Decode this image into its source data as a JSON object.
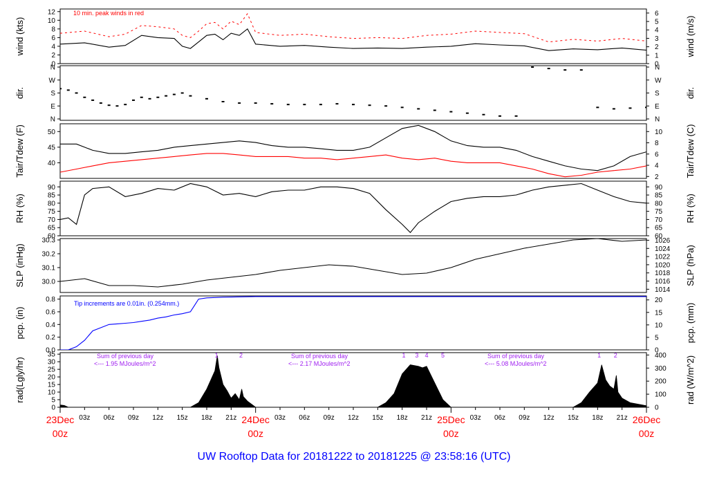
{
  "title": "UW Rooftop Data for 20181222  to  20181225 @ 23:58:16  (UTC)",
  "colors": {
    "black": "#000000",
    "red": "#ff0000",
    "blue": "#0000ff",
    "purple": "#a020f0",
    "title": "#0000ff"
  },
  "time_axis": {
    "minor_labels": [
      "03z",
      "06z",
      "09z",
      "12z",
      "15z",
      "18z",
      "21z"
    ],
    "days": [
      {
        "date": "23Dec",
        "hour": "00z"
      },
      {
        "date": "24Dec",
        "hour": "00z"
      },
      {
        "date": "25Dec",
        "hour": "00z"
      },
      {
        "date": "26Dec",
        "hour": "00z"
      }
    ]
  },
  "chart_data": [
    {
      "id": "wind",
      "type": "line",
      "ylabel_left": "wind (kts)",
      "ylabel_right": "wind (m/s)",
      "ylim": [
        0,
        12.6
      ],
      "left_ticks": [
        "0",
        "2",
        "4",
        "6",
        "8",
        "10",
        "12"
      ],
      "right_ticks": [
        "0",
        "1",
        "2",
        "3",
        "4",
        "5",
        "6"
      ],
      "annotation": "10 min. peak winds in red",
      "series": [
        {
          "color": "#000000",
          "hours": [
            0,
            3,
            6,
            8,
            10,
            12,
            14,
            15,
            16,
            17,
            18,
            19,
            20,
            21,
            22,
            23,
            24,
            27,
            30,
            33,
            36,
            39,
            42,
            45,
            48,
            51,
            54,
            57,
            60,
            63,
            66,
            69,
            72
          ],
          "values": [
            4.5,
            4.8,
            3.8,
            4.2,
            6.5,
            6.0,
            5.8,
            4.0,
            3.5,
            5.0,
            6.5,
            6.8,
            5.5,
            7.0,
            6.5,
            8.0,
            4.5,
            4.0,
            4.2,
            3.8,
            3.5,
            3.6,
            3.5,
            3.8,
            4.0,
            4.6,
            4.3,
            4.1,
            3.0,
            3.4,
            3.2,
            3.6,
            3.1
          ]
        },
        {
          "color": "#ff0000",
          "hours": [
            0,
            3,
            6,
            8,
            10,
            12,
            14,
            15,
            16,
            17,
            18,
            19,
            20,
            21,
            22,
            23,
            24,
            27,
            30,
            33,
            36,
            39,
            42,
            45,
            48,
            51,
            54,
            57,
            60,
            63,
            66,
            69,
            72
          ],
          "values": [
            7.0,
            7.5,
            6.2,
            6.8,
            8.8,
            8.5,
            8.0,
            6.5,
            6.0,
            7.5,
            9.2,
            9.5,
            8.0,
            9.8,
            9.0,
            11.5,
            7.2,
            6.5,
            6.8,
            6.2,
            5.8,
            6.0,
            5.8,
            6.5,
            6.8,
            7.5,
            7.2,
            6.9,
            5.0,
            5.6,
            5.2,
            5.8,
            5.2
          ]
        }
      ]
    },
    {
      "id": "dir",
      "type": "scatter",
      "ylabel_left": "dir.",
      "ylabel_right": "dir.",
      "left_ticks": [
        "N",
        "E",
        "S",
        "W",
        "N"
      ],
      "right_ticks": [
        "N",
        "E",
        "S",
        "W",
        "N"
      ],
      "series": [
        {
          "color": "#000000",
          "hours": [
            0,
            1,
            2,
            3,
            4,
            5,
            6,
            7,
            8,
            9,
            10,
            11,
            12,
            13,
            14,
            15,
            16,
            18,
            20,
            22,
            24,
            26,
            28,
            30,
            32,
            34,
            36,
            38,
            40,
            42,
            44,
            46,
            48,
            50,
            52,
            54,
            56,
            58,
            60,
            62,
            64,
            66,
            68,
            70,
            72
          ],
          "values": [
            210,
            200,
            180,
            150,
            130,
            110,
            95,
            90,
            100,
            130,
            150,
            140,
            150,
            160,
            170,
            180,
            160,
            140,
            120,
            110,
            110,
            105,
            100,
            100,
            100,
            105,
            100,
            95,
            90,
            80,
            70,
            60,
            50,
            40,
            30,
            20,
            20,
            360,
            350,
            340,
            340,
            80,
            70,
            75,
            80
          ]
        }
      ]
    },
    {
      "id": "temp",
      "type": "line",
      "ylabel_left": "Tair/Tdew (F)",
      "ylabel_right": "Tair/Tdew (C)",
      "ylim": [
        35,
        52.5
      ],
      "left_ticks": [
        "40",
        "45",
        "50"
      ],
      "right_ticks": [
        "2",
        "4",
        "6",
        "8",
        "10"
      ],
      "series": [
        {
          "color": "#000000",
          "hours": [
            0,
            2,
            4,
            6,
            8,
            10,
            12,
            14,
            16,
            18,
            20,
            22,
            24,
            26,
            28,
            30,
            32,
            34,
            36,
            38,
            40,
            42,
            44,
            46,
            48,
            50,
            52,
            54,
            56,
            58,
            60,
            62,
            64,
            66,
            68,
            70,
            72
          ],
          "values": [
            46,
            46,
            44,
            43,
            43,
            43.5,
            44,
            45,
            45.5,
            46,
            46.5,
            47,
            46.5,
            45.5,
            45,
            45,
            44.5,
            44,
            44,
            45,
            48,
            51,
            52,
            50,
            47,
            45.5,
            45,
            45,
            44,
            42,
            40.5,
            39,
            38,
            37.5,
            39,
            42,
            43.5
          ]
        },
        {
          "color": "#ff0000",
          "hours": [
            0,
            2,
            4,
            6,
            8,
            10,
            12,
            14,
            16,
            18,
            20,
            22,
            24,
            26,
            28,
            30,
            32,
            34,
            36,
            38,
            40,
            42,
            44,
            46,
            48,
            50,
            52,
            54,
            56,
            58,
            60,
            62,
            64,
            66,
            68,
            70,
            72
          ],
          "values": [
            37,
            38,
            39,
            40,
            40.5,
            41,
            41.5,
            42,
            42.5,
            43,
            43,
            42.5,
            42,
            42,
            42,
            41.5,
            41.5,
            41,
            41.5,
            42,
            42.5,
            41.5,
            41,
            41.5,
            40.5,
            40,
            40,
            40,
            39,
            38,
            36.5,
            35.5,
            36,
            37,
            37.5,
            38,
            39
          ]
        }
      ]
    },
    {
      "id": "rh",
      "type": "line",
      "ylabel_left": "RH (%)",
      "ylabel_right": "RH (%)",
      "ylim": [
        60,
        93.5
      ],
      "left_ticks": [
        "60",
        "65",
        "70",
        "75",
        "80",
        "85",
        "90"
      ],
      "right_ticks": [
        "60",
        "65",
        "70",
        "75",
        "80",
        "85",
        "90"
      ],
      "series": [
        {
          "color": "#000000",
          "hours": [
            0,
            1,
            2,
            3,
            4,
            6,
            8,
            10,
            12,
            14,
            16,
            18,
            20,
            22,
            24,
            26,
            28,
            30,
            32,
            34,
            36,
            38,
            40,
            42,
            43,
            44,
            46,
            48,
            50,
            52,
            54,
            56,
            58,
            60,
            62,
            64,
            66,
            68,
            70,
            72
          ],
          "values": [
            70,
            71,
            67,
            85,
            89,
            90,
            84,
            86,
            89,
            88,
            92,
            90,
            85,
            86,
            84,
            87,
            88,
            88,
            90,
            90,
            89,
            86,
            76,
            67,
            62,
            68,
            75,
            81,
            83,
            84,
            84,
            85,
            88,
            90,
            91,
            92,
            88,
            84,
            81,
            80
          ]
        }
      ]
    },
    {
      "id": "slp",
      "type": "line",
      "ylabel_left": "SLP (inHg)",
      "ylabel_right": "SLP (hPa)",
      "ylim": [
        29.92,
        30.31
      ],
      "left_ticks": [
        "30.0",
        "30.1",
        "30.2",
        "30.3"
      ],
      "right_ticks": [
        "1014",
        "1016",
        "1018",
        "1020",
        "1022",
        "1024",
        "1026"
      ],
      "series": [
        {
          "color": "#000000",
          "hours": [
            0,
            3,
            6,
            9,
            12,
            15,
            18,
            21,
            24,
            27,
            30,
            33,
            36,
            39,
            42,
            45,
            48,
            51,
            54,
            57,
            60,
            63,
            66,
            69,
            72
          ],
          "values": [
            30.0,
            30.02,
            29.97,
            29.97,
            29.96,
            29.98,
            30.01,
            30.03,
            30.05,
            30.08,
            30.1,
            30.12,
            30.11,
            30.08,
            30.05,
            30.06,
            30.1,
            30.16,
            30.2,
            30.24,
            30.27,
            30.3,
            30.31,
            30.29,
            30.3
          ]
        }
      ]
    },
    {
      "id": "pcp",
      "type": "line",
      "ylabel_left": "pcp. (in)",
      "ylabel_right": "pcp. (mm)",
      "ylim": [
        0,
        0.85
      ],
      "left_ticks": [
        "0.0",
        "0.2",
        "0.4",
        "0.6",
        "0.8"
      ],
      "right_ticks": [
        "0",
        "5",
        "10",
        "15",
        "20"
      ],
      "annotation": "Tip increments are 0.01in. (0.254mm.)",
      "series": [
        {
          "color": "#0000ff",
          "hours": [
            0,
            1,
            2,
            3,
            4,
            5,
            6,
            7,
            8,
            9,
            10,
            11,
            12,
            13,
            14,
            15,
            16,
            16.5,
            17,
            18,
            20,
            24,
            48,
            72
          ],
          "values": [
            0,
            0,
            0.05,
            0.15,
            0.3,
            0.35,
            0.4,
            0.41,
            0.42,
            0.43,
            0.45,
            0.47,
            0.5,
            0.52,
            0.55,
            0.57,
            0.6,
            0.7,
            0.8,
            0.82,
            0.83,
            0.84,
            0.84,
            0.84
          ]
        }
      ]
    },
    {
      "id": "rad",
      "type": "area",
      "ylabel_left": "rad(Lgly/hr)",
      "ylabel_right": "rad (W/m^2)",
      "ylim": [
        0,
        36
      ],
      "left_ticks": [
        "0",
        "5",
        "10",
        "15",
        "20",
        "25",
        "30",
        "35"
      ],
      "right_ticks": [
        "0",
        "100",
        "200",
        "300",
        "400"
      ],
      "daily_labels": [
        {
          "line1": "Sum of previous day",
          "line2": "<--- 1.95 MJoules/m^2"
        },
        {
          "line1": "Sum of previous day",
          "line2": "<--- 2.17 MJoules/m^2"
        },
        {
          "line1": "Sum of previous day",
          "line2": "<--- 5.08 MJoules/m^2"
        }
      ],
      "markers": [
        {
          "hour": 19.2,
          "label": "1"
        },
        {
          "hour": 22.2,
          "label": "2"
        },
        {
          "hour": 42.2,
          "label": "1"
        },
        {
          "hour": 43.8,
          "label": "3"
        },
        {
          "hour": 45.0,
          "label": "4"
        },
        {
          "hour": 47.0,
          "label": "5"
        },
        {
          "hour": 66.2,
          "label": "1"
        },
        {
          "hour": 68.2,
          "label": "2"
        }
      ],
      "series": [
        {
          "color": "#000000",
          "hours": [
            0,
            0.5,
            1,
            16,
            17,
            18,
            18.5,
            19,
            19.3,
            19.5,
            20,
            20.5,
            21,
            21.5,
            22,
            22.3,
            22.5,
            23,
            23.5,
            24,
            39,
            40,
            41,
            42,
            43,
            44,
            44.5,
            45,
            46,
            47,
            48,
            63,
            64,
            65,
            66,
            66.5,
            67,
            67.5,
            68,
            68.3,
            68.5,
            69,
            70,
            72
          ],
          "values": [
            1.5,
            1.2,
            0,
            0,
            3,
            12,
            18,
            24,
            34,
            26,
            15,
            11,
            6,
            9,
            5,
            12,
            7,
            4,
            2,
            0,
            0,
            3,
            9,
            22,
            28,
            27,
            26,
            27,
            16,
            5,
            0,
            0,
            3,
            10,
            16,
            28,
            18,
            14,
            12,
            21,
            10,
            6,
            3,
            1
          ]
        }
      ]
    }
  ]
}
